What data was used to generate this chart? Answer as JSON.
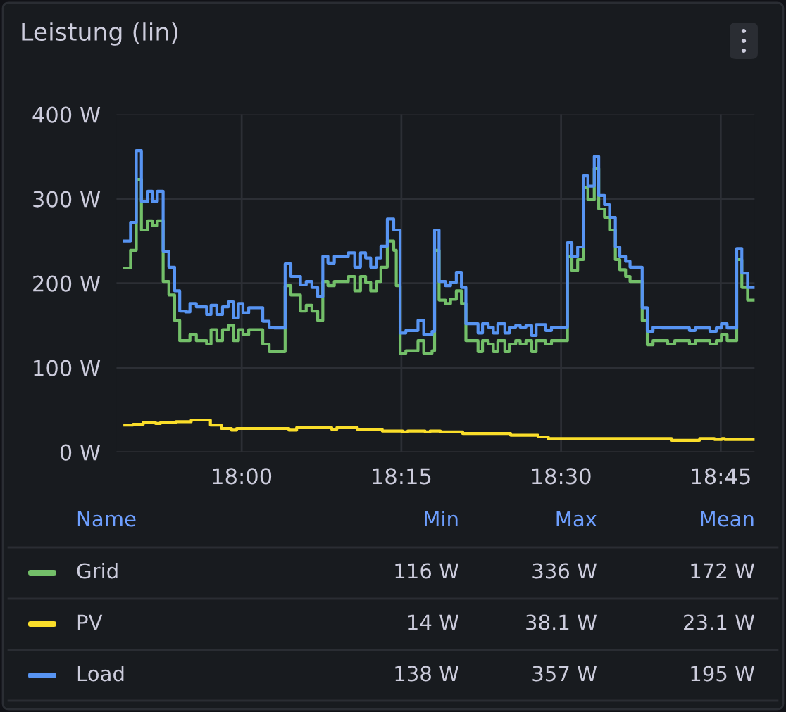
{
  "chart_data": {
    "type": "step",
    "title": "Leistung (lin)",
    "x": [
      17.816,
      17.826,
      17.835,
      17.843,
      17.853,
      17.86,
      17.868,
      17.877,
      17.886,
      17.895,
      17.903,
      17.912,
      17.919,
      17.929,
      17.945,
      17.952,
      17.961,
      17.97,
      17.979,
      17.987,
      17.995,
      18.002,
      18.011,
      18.033,
      18.043,
      18.051,
      18.068,
      18.077,
      18.092,
      18.101,
      18.11,
      18.119,
      18.127,
      18.135,
      18.145,
      18.167,
      18.177,
      18.186,
      18.194,
      18.202,
      18.211,
      18.218,
      18.228,
      18.238,
      18.242,
      18.248,
      18.257,
      18.276,
      18.285,
      18.298,
      18.302,
      18.309,
      18.319,
      18.327,
      18.336,
      18.344,
      18.351,
      18.37,
      18.377,
      18.386,
      18.394,
      18.401,
      18.412,
      18.419,
      18.429,
      18.436,
      18.445,
      18.454,
      18.461,
      18.476,
      18.485,
      18.51,
      18.517,
      18.526,
      18.535,
      18.542,
      18.552,
      18.559,
      18.568,
      18.576,
      18.585,
      18.592,
      18.601,
      18.608,
      18.627,
      18.635,
      18.644,
      18.658,
      18.667,
      18.678,
      18.701,
      18.71,
      18.733,
      18.743,
      18.751,
      18.76,
      18.775,
      18.783,
      18.792,
      18.802
    ],
    "series": [
      {
        "name": "Grid",
        "color": "#73bf69",
        "values": [
          218,
          239,
          323,
          263,
          274,
          268,
          274,
          202,
          186,
          156,
          132,
          132,
          139,
          132,
          128,
          145,
          132,
          145,
          150,
          132,
          145,
          139,
          145,
          128,
          119,
          119,
          197,
          186,
          167,
          174,
          167,
          156,
          202,
          197,
          202,
          208,
          191,
          208,
          201,
          191,
          202,
          219,
          250,
          239,
          197,
          117,
          120,
          132,
          117,
          120,
          239,
          180,
          176,
          181,
          191,
          176,
          132,
          119,
          132,
          128,
          119,
          132,
          119,
          128,
          132,
          128,
          132,
          119,
          132,
          128,
          132,
          232,
          215,
          228,
          313,
          299,
          336,
          288,
          278,
          263,
          228,
          216,
          208,
          202,
          156,
          127,
          132,
          132,
          128,
          132,
          128,
          132,
          128,
          132,
          139,
          132,
          228,
          195,
          180,
          180
        ]
      },
      {
        "name": "PV",
        "color": "#fade2a",
        "x": [
          17.817,
          17.83,
          17.846,
          17.865,
          17.873,
          17.897,
          17.921,
          17.951,
          17.968,
          17.984,
          17.992,
          18.074,
          18.086,
          18.141,
          18.149,
          18.181,
          18.22,
          18.252,
          18.26,
          18.287,
          18.295,
          18.311,
          18.346,
          18.421,
          18.464,
          18.48,
          18.673,
          18.717,
          18.74,
          18.752,
          18.756,
          18.802
        ],
        "values": [
          32,
          33,
          35,
          34,
          35,
          36,
          38,
          32,
          28,
          26,
          28,
          26,
          29,
          27,
          29,
          27,
          25,
          24,
          25,
          24,
          25,
          24,
          22,
          20,
          18,
          16,
          14,
          16,
          15,
          16,
          15,
          15
        ]
      },
      {
        "name": "Load",
        "color": "#5794f2",
        "values": [
          250,
          272,
          357,
          297,
          309,
          297,
          309,
          238,
          219,
          191,
          167,
          166,
          176,
          172,
          163,
          174,
          163,
          172,
          178,
          159,
          176,
          165,
          171,
          155,
          148,
          147,
          223,
          208,
          198,
          202,
          195,
          184,
          232,
          224,
          232,
          236,
          219,
          236,
          230,
          219,
          230,
          244,
          276,
          263,
          263,
          141,
          144,
          156,
          139,
          143,
          263,
          202,
          197,
          201,
          213,
          195,
          152,
          141,
          152,
          148,
          141,
          152,
          141,
          148,
          150,
          148,
          150,
          138,
          151,
          144,
          148,
          248,
          232,
          243,
          327,
          315,
          350,
          304,
          293,
          278,
          243,
          232,
          226,
          219,
          171,
          143,
          148,
          147,
          147,
          147,
          144,
          147,
          143,
          147,
          152,
          147,
          241,
          212,
          195,
          195
        ]
      }
    ],
    "xlim": [
      17.804,
      18.803
    ],
    "xticks": [
      {
        "value": 18.0,
        "label": "18:00"
      },
      {
        "value": 18.25,
        "label": "18:15"
      },
      {
        "value": 18.5,
        "label": "18:30"
      },
      {
        "value": 18.75,
        "label": "18:45"
      }
    ],
    "ylim": [
      0,
      400
    ],
    "yticks": [
      {
        "value": 0,
        "label": "0 W"
      },
      {
        "value": 100,
        "label": "100 W"
      },
      {
        "value": 200,
        "label": "200 W"
      },
      {
        "value": 300,
        "label": "300 W"
      },
      {
        "value": 400,
        "label": "400 W"
      }
    ],
    "grid": true,
    "legend": "bottom",
    "annotations": [
      "Name",
      "Min",
      "Max",
      "Mean",
      "116 W",
      "336 W",
      "172 W",
      "14 W",
      "38.1 W",
      "23.1 W",
      "138 W",
      "357 W",
      "195 W"
    ]
  }
}
